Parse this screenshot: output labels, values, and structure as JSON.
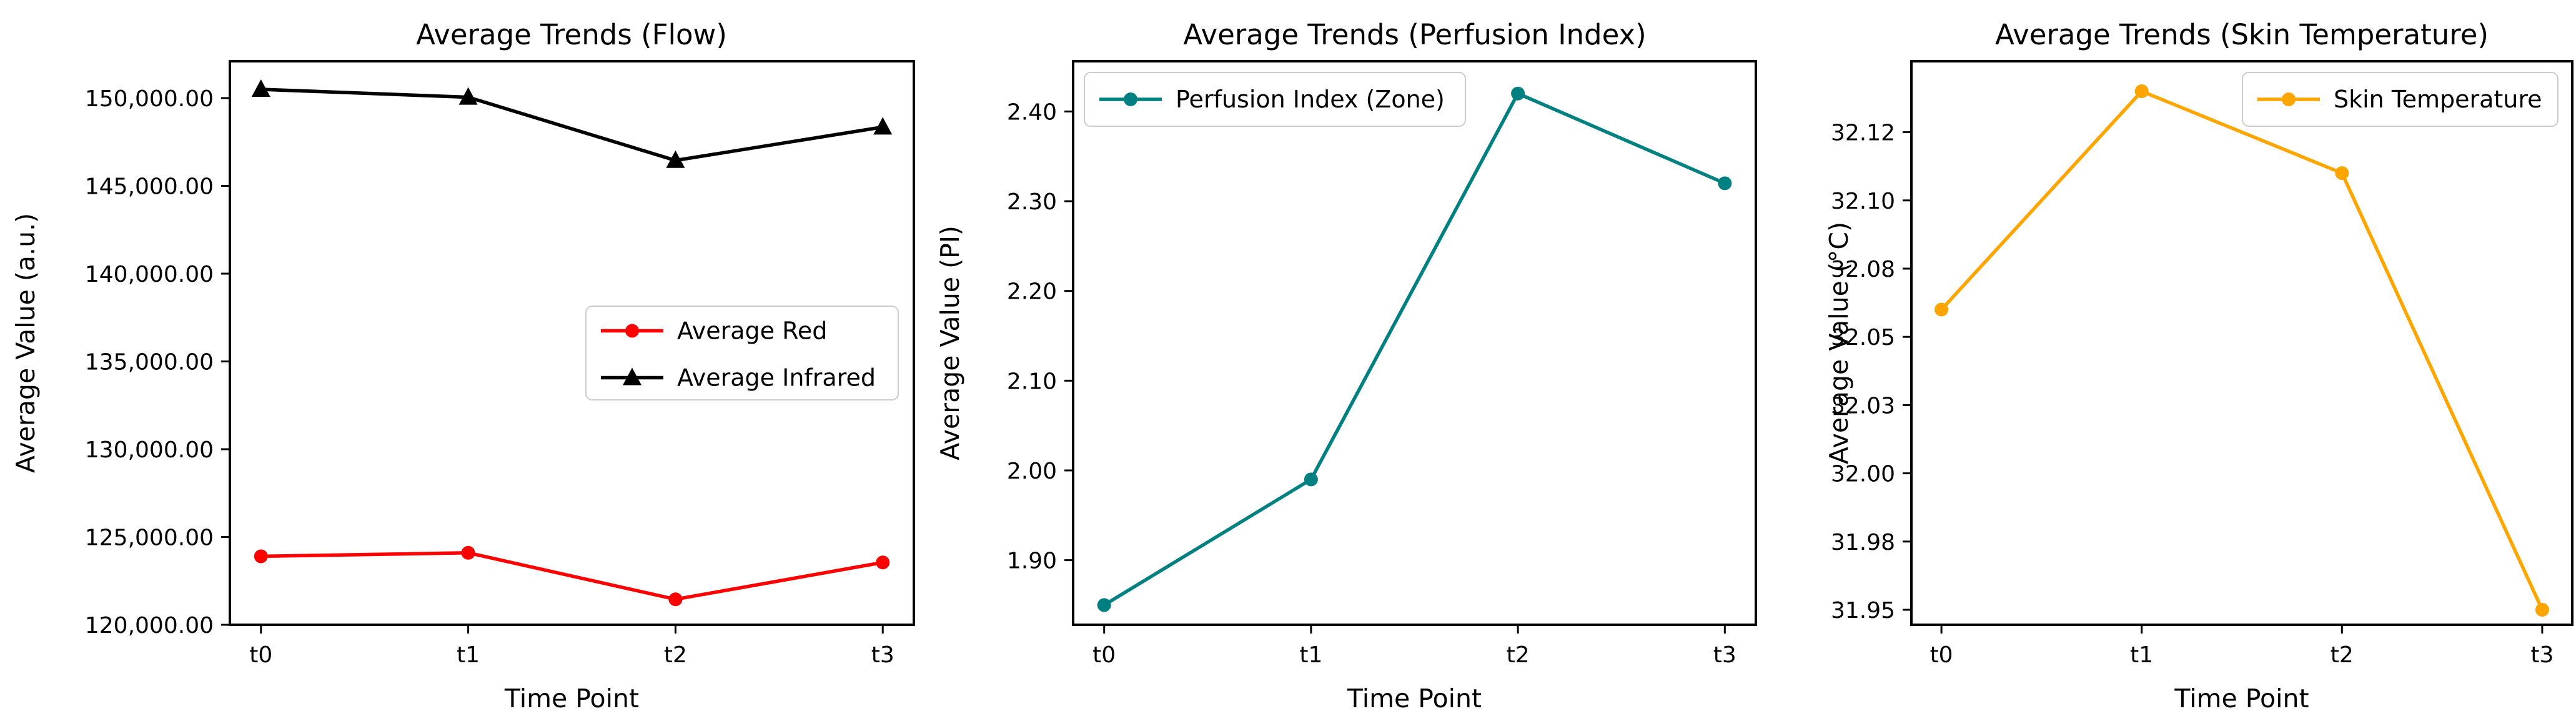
{
  "page": {
    "background": "#ffffff"
  },
  "chart_data": [
    {
      "type": "line",
      "title": "Average Trends (Flow)",
      "xlabel": "Time Point",
      "ylabel": "Average Value (a.u.)",
      "categories": [
        "t0",
        "t1",
        "t2",
        "t3"
      ],
      "ylim": [
        120000,
        152100
      ],
      "ytick_values": [
        120000,
        125000,
        130000,
        135000,
        140000,
        145000,
        150000
      ],
      "ytick_labels": [
        "120,000.00",
        "125,000.00",
        "130,000.00",
        "135,000.00",
        "140,000.00",
        "145,000.00",
        "150,000.00"
      ],
      "grid": false,
      "legend_position": "center-right",
      "series": [
        {
          "name": "Average Red",
          "color": "#ff0000",
          "marker": "circle",
          "values": [
            123900,
            124100,
            121450,
            123550
          ]
        },
        {
          "name": "Average Infrared",
          "color": "#000000",
          "marker": "triangle",
          "values": [
            150500,
            150050,
            146450,
            148350
          ]
        }
      ]
    },
    {
      "type": "line",
      "title": "Average Trends (Perfusion Index)",
      "xlabel": "Time Point",
      "ylabel": "Average Value (PI)",
      "categories": [
        "t0",
        "t1",
        "t2",
        "t3"
      ],
      "ylim": [
        1.828,
        2.456
      ],
      "ytick_values": [
        1.9,
        2.0,
        2.1,
        2.2,
        2.3,
        2.4
      ],
      "ytick_labels": [
        "1.90",
        "2.00",
        "2.10",
        "2.20",
        "2.30",
        "2.40"
      ],
      "grid": false,
      "legend_position": "top-left",
      "series": [
        {
          "name": "Perfusion Index (Zone)",
          "color": "#008080",
          "marker": "circle",
          "values": [
            1.85,
            1.99,
            2.42,
            2.32
          ]
        }
      ]
    },
    {
      "type": "line",
      "title": "Average Trends (Skin Temperature)",
      "xlabel": "Time Point",
      "ylabel": "Average Value (°C)",
      "categories": [
        "t0",
        "t1",
        "t2",
        "t3"
      ],
      "ylim": [
        31.9445,
        32.151
      ],
      "ytick_values": [
        31.95,
        31.975,
        32.0,
        32.025,
        32.05,
        32.075,
        32.1,
        32.125
      ],
      "ytick_labels": [
        "31.95",
        "31.98",
        "32.00",
        "32.03",
        "32.05",
        "32.08",
        "32.10",
        "32.12"
      ],
      "grid": false,
      "legend_position": "top-right",
      "series": [
        {
          "name": "Skin Temperature",
          "color": "#FFA500",
          "marker": "circle",
          "values": [
            32.06,
            32.14,
            32.11,
            31.95
          ]
        }
      ]
    }
  ]
}
